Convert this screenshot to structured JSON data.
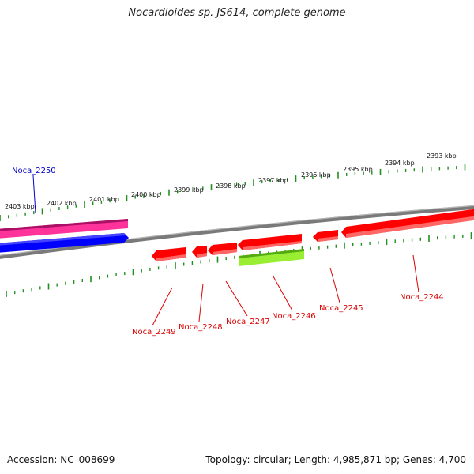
{
  "title": "Nocardioides sp. JS614, complete genome",
  "accession_label": "Accession: NC_008699",
  "summary_label": "Topology: circular; Length: 4,985,871 bp; Genes: 4,700",
  "scale_labels": [
    "2393 kbp",
    "2394 kbp",
    "2395 kbp",
    "2396 kbp",
    "2397 kbp",
    "2398 kbp",
    "2399 kbp",
    "2400 kbp",
    "2401 kbp",
    "2402 kbp",
    "2403 kbp"
  ],
  "genes": [
    {
      "name": "Noca_2250",
      "color": "#0000cc"
    },
    {
      "name": "Noca_2249",
      "color": "#dd0000"
    },
    {
      "name": "Noca_2248",
      "color": "#dd0000"
    },
    {
      "name": "Noca_2247",
      "color": "#dd0000"
    },
    {
      "name": "Noca_2246",
      "color": "#dd0000"
    },
    {
      "name": "Noca_2245",
      "color": "#dd0000"
    },
    {
      "name": "Noca_2244",
      "color": "#dd0000"
    }
  ],
  "colors": {
    "backbone": "#7a7a7a",
    "tick": "#1f8f1f",
    "forward_gene": "#ff0000",
    "reverse_gene": "#ff0000",
    "pink_track": "#ff3399",
    "blue_track": "#0000ff",
    "green_track": "#99ee33"
  }
}
